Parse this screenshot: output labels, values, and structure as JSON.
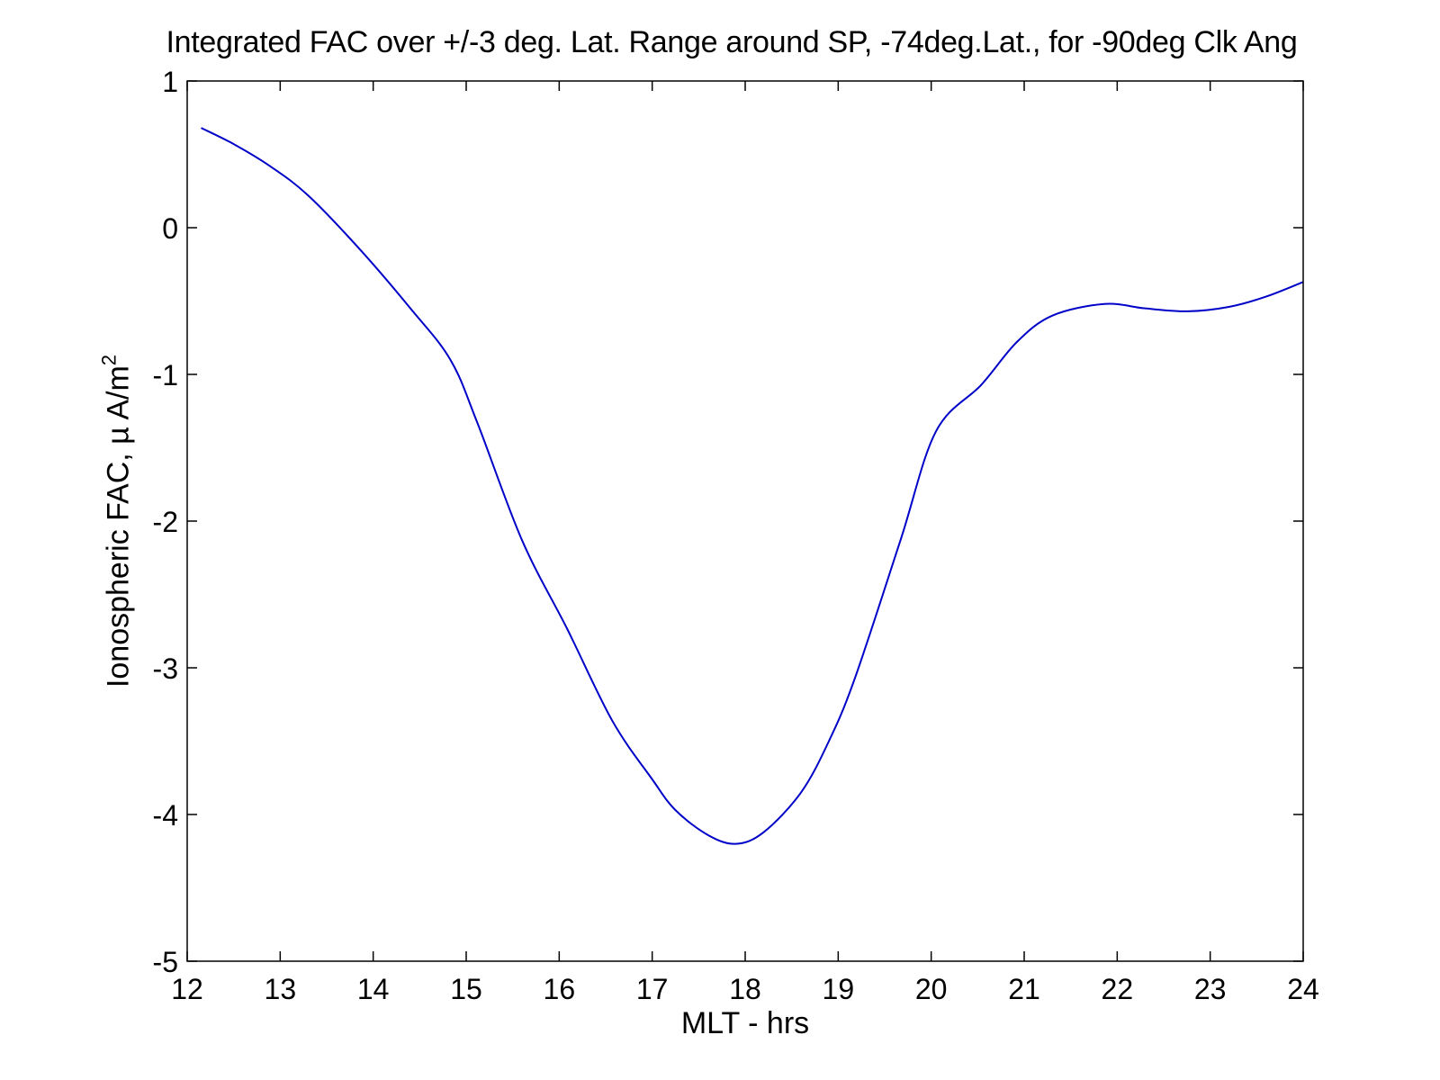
{
  "chart_data": {
    "type": "line",
    "title": "Integrated FAC over +/-3 deg. Lat. Range around SP, -74deg.Lat., for -90deg Clk Ang",
    "xlabel": "MLT - hrs",
    "ylabel_main": "Ionospheric FAC, µ A/m",
    "ylabel_sup": "2",
    "xlim": [
      12,
      24
    ],
    "ylim": [
      -5,
      1
    ],
    "xticks": [
      12,
      13,
      14,
      15,
      16,
      17,
      18,
      19,
      20,
      21,
      22,
      23,
      24
    ],
    "yticks": [
      -5,
      -4,
      -3,
      -2,
      -1,
      0,
      1
    ],
    "grid": false,
    "legend": null,
    "line_color": "#0000c8",
    "series": [
      {
        "name": "Integrated FAC",
        "x": [
          12.15,
          12.5,
          12.89,
          13.3,
          13.86,
          14.4,
          14.83,
          15.12,
          15.6,
          16.09,
          16.57,
          17.0,
          17.25,
          17.6,
          17.9,
          18.2,
          18.6,
          18.9,
          19.18,
          19.67,
          20.05,
          20.54,
          20.92,
          21.3,
          21.86,
          22.3,
          22.76,
          23.2,
          23.6,
          24.0
        ],
        "y": [
          0.68,
          0.57,
          0.42,
          0.22,
          -0.15,
          -0.55,
          -0.9,
          -1.33,
          -2.13,
          -2.74,
          -3.36,
          -3.76,
          -3.97,
          -4.14,
          -4.2,
          -4.12,
          -3.85,
          -3.5,
          -3.07,
          -2.13,
          -1.39,
          -1.07,
          -0.78,
          -0.6,
          -0.52,
          -0.55,
          -0.57,
          -0.54,
          -0.47,
          -0.37
        ]
      }
    ]
  }
}
